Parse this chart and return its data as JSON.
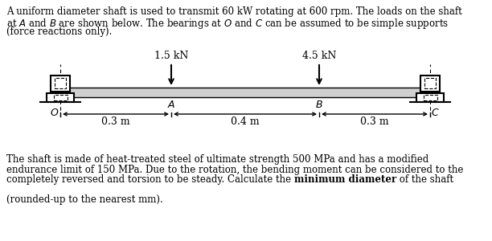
{
  "top_line1": "A uniform diameter shaft is used to transmit 60 kW rotating at 600 rpm. The loads on the shaft",
  "top_line2": "at $\\mathit{A}$ and $\\mathit{B}$ are shown below. The bearings at $\\mathit{O}$ and $\\mathit{C}$ can be assumed to be simple supports",
  "top_line3": "(force reactions only).",
  "load1_label": "1.5 kN",
  "load2_label": "4.5 kN",
  "dim1_label": "0.3 m",
  "dim2_label": "0.4 m",
  "dim3_label": "0.3 m",
  "label_O": "$\\mathit{O}$",
  "label_A": "$\\mathit{A}$",
  "label_B": "$\\mathit{B}$",
  "label_C": "$\\mathit{C}$",
  "bot_line1": "The shaft is made of heat-treated steel of ultimate strength 500 MPa and has a modified",
  "bot_line2": "endurance limit of 150 MPa. Due to the rotation, the bending moment can be considered to the",
  "bot_line3a": "completely reversed and torsion to be steady. Calculate the ",
  "bot_line3b": "minimum diameter",
  "bot_line3c": " of the shaft",
  "bot_line4": "(rounded-up to the nearest mm).",
  "shaft_color": "#d0d0d0",
  "bg_color": "#ffffff",
  "text_color": "#000000",
  "fs_text": 8.5,
  "fs_label": 9.0
}
